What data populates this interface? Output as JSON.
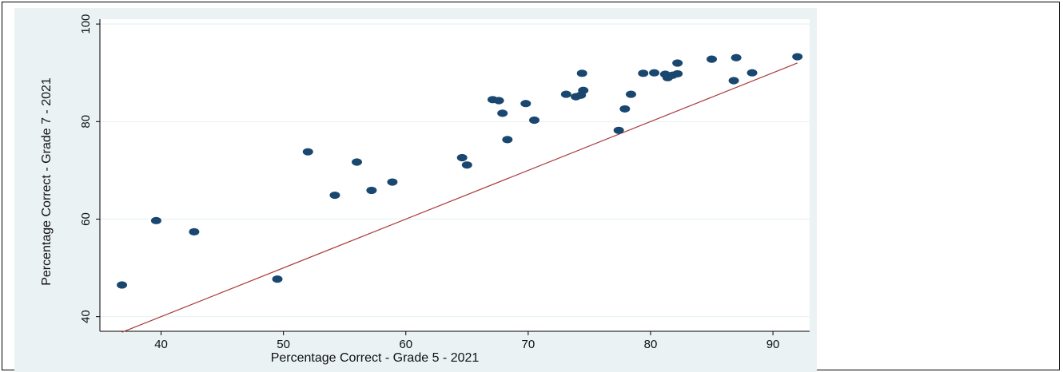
{
  "chart_data": {
    "type": "scatter",
    "title": "",
    "xlabel": "Percentage Correct - Grade 5 - 2021",
    "ylabel": "Percentage Correct - Grade 7 - 2021",
    "xlim": [
      35,
      93
    ],
    "ylim": [
      37,
      101
    ],
    "xticks": [
      40,
      50,
      60,
      70,
      80,
      90
    ],
    "yticks": [
      40,
      60,
      80,
      100
    ],
    "grid": true,
    "background_color": "#eaf2f3",
    "plot_color": "#ffffff",
    "point_color": "#1a476f",
    "line_color": "#a8383b",
    "reference_line": {
      "label": "",
      "x": [
        36.8,
        92
      ],
      "y": [
        36.8,
        92
      ]
    },
    "points": [
      {
        "x": 36.8,
        "y": 46.5
      },
      {
        "x": 39.6,
        "y": 59.7
      },
      {
        "x": 42.7,
        "y": 57.4
      },
      {
        "x": 49.5,
        "y": 47.7
      },
      {
        "x": 52.0,
        "y": 73.8
      },
      {
        "x": 54.2,
        "y": 64.9
      },
      {
        "x": 56.0,
        "y": 71.7
      },
      {
        "x": 57.2,
        "y": 65.9
      },
      {
        "x": 58.9,
        "y": 67.6
      },
      {
        "x": 64.6,
        "y": 72.6
      },
      {
        "x": 65.0,
        "y": 71.1
      },
      {
        "x": 67.1,
        "y": 84.5
      },
      {
        "x": 67.6,
        "y": 84.3
      },
      {
        "x": 67.9,
        "y": 81.7
      },
      {
        "x": 68.3,
        "y": 76.3
      },
      {
        "x": 69.8,
        "y": 83.7
      },
      {
        "x": 70.5,
        "y": 80.3
      },
      {
        "x": 73.1,
        "y": 85.6
      },
      {
        "x": 73.9,
        "y": 85.1
      },
      {
        "x": 74.3,
        "y": 85.4
      },
      {
        "x": 74.5,
        "y": 86.4
      },
      {
        "x": 74.4,
        "y": 89.9
      },
      {
        "x": 77.4,
        "y": 78.2
      },
      {
        "x": 77.9,
        "y": 82.6
      },
      {
        "x": 78.4,
        "y": 85.6
      },
      {
        "x": 79.4,
        "y": 89.9
      },
      {
        "x": 80.3,
        "y": 90.0
      },
      {
        "x": 81.2,
        "y": 89.7
      },
      {
        "x": 81.4,
        "y": 89.0
      },
      {
        "x": 81.8,
        "y": 89.5
      },
      {
        "x": 82.2,
        "y": 89.8
      },
      {
        "x": 82.2,
        "y": 92.0
      },
      {
        "x": 85.0,
        "y": 92.8
      },
      {
        "x": 86.8,
        "y": 88.4
      },
      {
        "x": 87.0,
        "y": 93.1
      },
      {
        "x": 88.3,
        "y": 90.0
      },
      {
        "x": 92.0,
        "y": 93.3
      }
    ]
  }
}
